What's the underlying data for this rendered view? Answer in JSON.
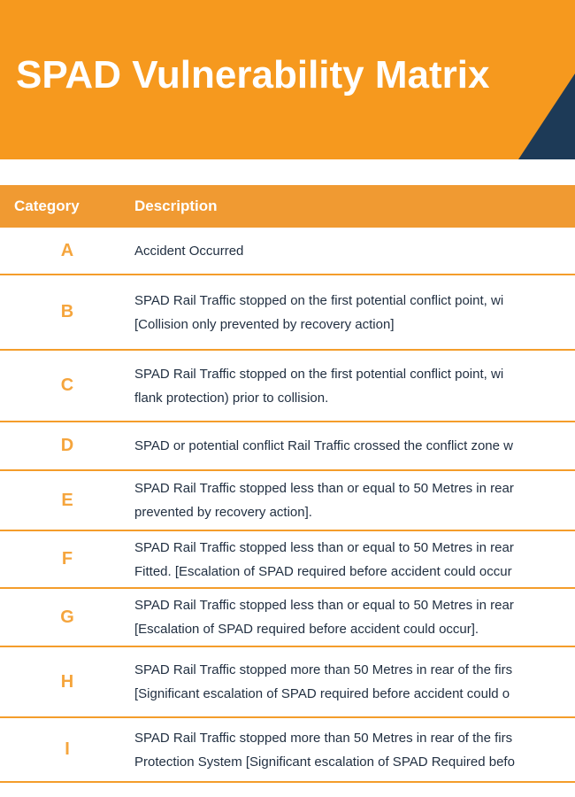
{
  "colors": {
    "orange": "#F6991E",
    "header-orange": "#F09A32",
    "navy": "#1D3A57",
    "text": "#223042",
    "category": "#F5A53D",
    "divider": "#F49D2B"
  },
  "banner": {
    "title": "SPAD Vulnerability Matrix"
  },
  "table": {
    "header": {
      "category": "Category",
      "description": "Description"
    },
    "rows": [
      {
        "category": "A",
        "lines": [
          "Accident Occurred"
        ]
      },
      {
        "category": "B",
        "lines": [
          "SPAD Rail Traffic stopped on the first potential conflict point, wi",
          "[Collision only prevented by recovery action]"
        ]
      },
      {
        "category": "C",
        "lines": [
          "SPAD Rail Traffic stopped on the first potential conflict point, wi",
          "flank protection) prior to collision."
        ]
      },
      {
        "category": "D",
        "lines": [
          "SPAD or potential conflict Rail Traffic crossed the conflict zone w"
        ]
      },
      {
        "category": "E",
        "lines": [
          "SPAD Rail Traffic stopped less than or equal to 50 Metres in rear",
          "prevented by recovery action]."
        ]
      },
      {
        "category": "F",
        "lines": [
          "SPAD Rail Traffic stopped less than or equal to 50 Metres in rear",
          "Fitted. [Escalation of SPAD required before accident could occur"
        ]
      },
      {
        "category": "G",
        "lines": [
          "SPAD Rail Traffic stopped less than or equal to 50 Metres in rear",
          "[Escalation of SPAD required before accident could occur]."
        ]
      },
      {
        "category": "H",
        "lines": [
          "SPAD Rail Traffic stopped more than 50 Metres in rear of the firs",
          "[Significant escalation of SPAD required before accident could o"
        ]
      },
      {
        "category": "I",
        "lines": [
          "SPAD Rail Traffic stopped more than 50 Metres in rear of the firs",
          "Protection System [Significant escalation of SPAD Required befo"
        ]
      }
    ]
  }
}
